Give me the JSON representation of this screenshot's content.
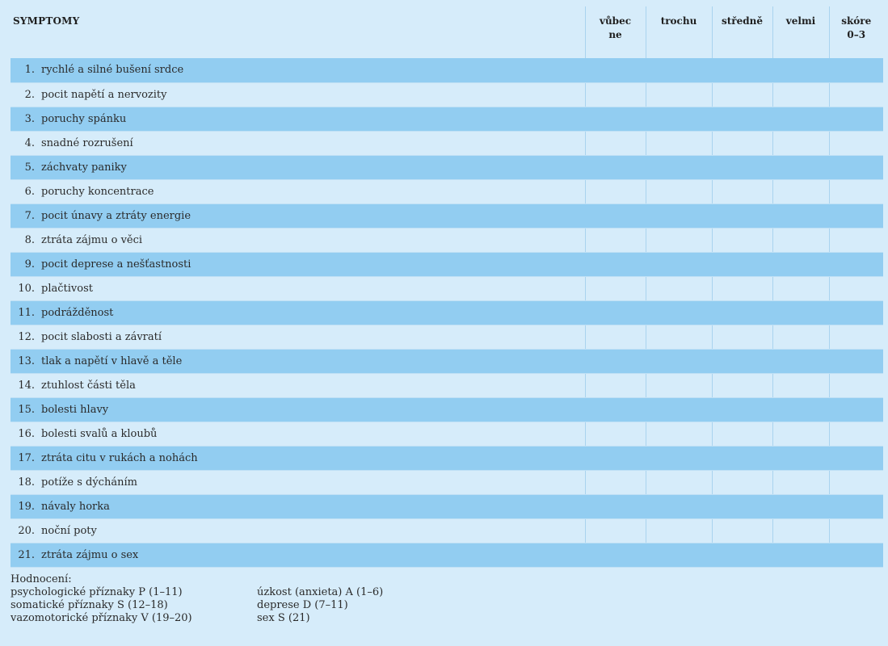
{
  "table": {
    "headers": {
      "symptoms": "SYMPTOMY",
      "not_at_all": [
        "vůbec",
        "ne"
      ],
      "a_little": "trochu",
      "moderately": "středně",
      "very": "velmi",
      "score": [
        "skóre",
        "0–3"
      ]
    },
    "rows": [
      {
        "num": "1.",
        "label": "rychlé a silné bušení srdce"
      },
      {
        "num": "2.",
        "label": "pocit napětí a nervozity"
      },
      {
        "num": "3.",
        "label": "poruchy spánku"
      },
      {
        "num": "4.",
        "label": "snadné rozrušení"
      },
      {
        "num": "5.",
        "label": "záchvaty paniky"
      },
      {
        "num": "6.",
        "label": "poruchy koncentrace"
      },
      {
        "num": "7.",
        "label": "pocit únavy a ztráty energie"
      },
      {
        "num": "8.",
        "label": "ztráta zájmu o věci"
      },
      {
        "num": "9.",
        "label": "pocit deprese a nešťastnosti"
      },
      {
        "num": "10.",
        "label": "plačtivost"
      },
      {
        "num": "11.",
        "label": "podrážděnost"
      },
      {
        "num": "12.",
        "label": "pocit slabosti a závratí"
      },
      {
        "num": "13.",
        "label": "tlak a napětí v hlavě a těle"
      },
      {
        "num": "14.",
        "label": "ztuhlost části těla"
      },
      {
        "num": "15.",
        "label": "bolesti hlavy"
      },
      {
        "num": "16.",
        "label": "bolesti svalů a kloubů"
      },
      {
        "num": "17.",
        "label": "ztráta citu v rukách a nohách"
      },
      {
        "num": "18.",
        "label": "potíže s dýcháním"
      },
      {
        "num": "19.",
        "label": "návaly horka"
      },
      {
        "num": "20.",
        "label": "noční poty"
      },
      {
        "num": "21.",
        "label": "ztráta zájmu o sex"
      }
    ]
  },
  "legend": {
    "title": "Hodnocení:",
    "left": [
      "psychologické příznaky P (1–11)",
      "somatické příznaky S (12–18)",
      "vazomotorické příznaky V (19–20)"
    ],
    "right": [
      "úzkost (anxieta) A (1–6)",
      "deprese D (7–11)",
      "sex S (21)"
    ]
  },
  "colors": {
    "background": "#d6ecfa",
    "row_stripe": "#92cdf1",
    "divider": "#a9d3ef"
  }
}
